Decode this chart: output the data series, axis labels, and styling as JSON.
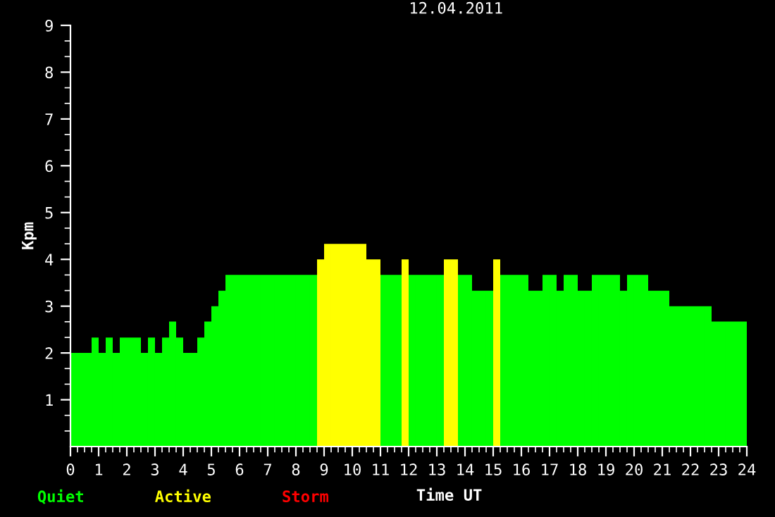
{
  "chart_data": {
    "type": "bar",
    "title": "12.04.2011",
    "xlabel": "Time UT",
    "ylabel": "Kpm",
    "x": [
      0.125,
      0.375,
      0.625,
      0.875,
      1.125,
      1.375,
      1.625,
      1.875,
      2.125,
      2.375,
      2.625,
      2.875,
      3.125,
      3.375,
      3.625,
      3.875,
      4.125,
      4.375,
      4.625,
      4.875,
      5.125,
      5.375,
      5.625,
      5.875,
      6.125,
      6.375,
      6.625,
      6.875,
      7.125,
      7.375,
      7.625,
      7.875,
      8.125,
      8.375,
      8.625,
      8.875,
      9.125,
      9.375,
      9.625,
      9.875,
      10.125,
      10.375,
      10.625,
      10.875,
      11.125,
      11.375,
      11.625,
      11.875,
      12.125,
      12.375,
      12.625,
      12.875,
      13.125,
      13.375,
      13.625,
      13.875,
      14.125,
      14.375,
      14.625,
      14.875,
      15.125,
      15.375,
      15.625,
      15.875,
      16.125,
      16.375,
      16.625,
      16.875,
      17.125,
      17.375,
      17.625,
      17.875,
      18.125,
      18.375,
      18.625,
      18.875,
      19.125,
      19.375,
      19.625,
      19.875,
      20.125,
      20.375,
      20.625,
      20.875,
      21.125,
      21.375,
      21.625,
      21.875,
      22.125,
      22.375,
      22.625,
      22.875,
      23.125,
      23.375,
      23.625,
      23.875
    ],
    "series": [
      {
        "name": "Quiet",
        "color": "#00ff00",
        "values": [
          2,
          2,
          2,
          2.33,
          2,
          2.33,
          2,
          2.33,
          2.33,
          2.33,
          2,
          2.33,
          2,
          2.33,
          2.67,
          2.33,
          2,
          2,
          2.33,
          2.67,
          3,
          3.33,
          3.67,
          3.67,
          3.67,
          3.67,
          3.67,
          3.67,
          3.67,
          3.67,
          3.67,
          3.67,
          3.67,
          3.67,
          3.67,
          null,
          null,
          null,
          null,
          null,
          null,
          null,
          null,
          null,
          3.67,
          3.67,
          3.67,
          null,
          3.67,
          3.67,
          3.67,
          3.67,
          3.67,
          null,
          null,
          3.67,
          3.67,
          3.33,
          3.33,
          3.33,
          null,
          3.67,
          3.67,
          3.67,
          3.67,
          3.33,
          3.33,
          3.67,
          3.67,
          3.33,
          3.67,
          3.67,
          3.33,
          3.33,
          3.67,
          3.67,
          3.67,
          3.67,
          3.33,
          3.67,
          3.67,
          3.67,
          3.33,
          3.33,
          3.33,
          3,
          3,
          3,
          3,
          3,
          3,
          2.67,
          2.67,
          2.67,
          2.67,
          2.67
        ]
      },
      {
        "name": "Active",
        "color": "#ffff00",
        "values": [
          null,
          null,
          null,
          null,
          null,
          null,
          null,
          null,
          null,
          null,
          null,
          null,
          null,
          null,
          null,
          null,
          null,
          null,
          null,
          null,
          null,
          null,
          null,
          null,
          null,
          null,
          null,
          null,
          null,
          null,
          null,
          null,
          null,
          null,
          null,
          4,
          4.33,
          4.33,
          4.33,
          4.33,
          4.33,
          4.33,
          4,
          4,
          null,
          null,
          null,
          4,
          null,
          null,
          null,
          null,
          null,
          4,
          4,
          null,
          null,
          null,
          null,
          null,
          4,
          null,
          null,
          null,
          null,
          null,
          null,
          null,
          null,
          null,
          null,
          null,
          null,
          null,
          null,
          null,
          null,
          null,
          null,
          null,
          null,
          null,
          null,
          null,
          null,
          null,
          null,
          null,
          null,
          null,
          null,
          null,
          null,
          null,
          null,
          null
        ]
      },
      {
        "name": "Storm",
        "color": "#ff0000",
        "values": [
          null,
          null,
          null,
          null,
          null,
          null,
          null,
          null,
          null,
          null,
          null,
          null,
          null,
          null,
          null,
          null,
          null,
          null,
          null,
          null,
          null,
          null,
          null,
          null,
          null,
          null,
          null,
          null,
          null,
          null,
          null,
          null,
          null,
          null,
          null,
          null,
          null,
          null,
          null,
          null,
          null,
          null,
          null,
          null,
          null,
          null,
          null,
          null,
          null,
          null,
          null,
          null,
          null,
          null,
          null,
          null,
          null,
          null,
          null,
          null,
          null,
          null,
          null,
          null,
          null,
          null,
          null,
          null,
          null,
          null,
          null,
          null,
          null,
          null,
          null,
          null,
          null,
          null,
          null,
          null,
          null,
          null,
          null,
          null,
          null,
          null,
          null,
          null,
          null,
          null,
          null,
          null,
          null,
          null,
          null,
          null
        ]
      }
    ],
    "xlim": [
      0,
      24
    ],
    "ylim": [
      0,
      9
    ],
    "xticks": [
      0,
      {
        "value": 0.25,
        "label": null
      },
      {
        "value": 0.5,
        "label": null
      },
      {
        "value": 0.75,
        "label": null
      },
      1,
      {
        "value": 1.25,
        "label": null
      },
      {
        "value": 1.5,
        "label": null
      },
      {
        "value": 1.75,
        "label": null
      },
      2,
      {
        "value": 2.25,
        "label": null
      },
      {
        "value": 2.5,
        "label": null
      },
      {
        "value": 2.75,
        "label": null
      },
      3,
      {
        "value": 3.25,
        "label": null
      },
      {
        "value": 3.5,
        "label": null
      },
      {
        "value": 3.75,
        "label": null
      },
      4,
      {
        "value": 4.25,
        "label": null
      },
      {
        "value": 4.5,
        "label": null
      },
      {
        "value": 4.75,
        "label": null
      },
      5,
      {
        "value": 5.25,
        "label": null
      },
      {
        "value": 5.5,
        "label": null
      },
      {
        "value": 5.75,
        "label": null
      },
      6,
      {
        "value": 6.25,
        "label": null
      },
      {
        "value": 6.5,
        "label": null
      },
      {
        "value": 6.75,
        "label": null
      },
      7,
      {
        "value": 7.25,
        "label": null
      },
      {
        "value": 7.5,
        "label": null
      },
      {
        "value": 7.75,
        "label": null
      },
      8,
      {
        "value": 8.25,
        "label": null
      },
      {
        "value": 8.5,
        "label": null
      },
      {
        "value": 8.75,
        "label": null
      },
      9,
      {
        "value": 9.25,
        "label": null
      },
      {
        "value": 9.5,
        "label": null
      },
      {
        "value": 9.75,
        "label": null
      },
      10,
      {
        "value": 10.25,
        "label": null
      },
      {
        "value": 10.5,
        "label": null
      },
      {
        "value": 10.75,
        "label": null
      },
      11,
      {
        "value": 11.25,
        "label": null
      },
      {
        "value": 11.5,
        "label": null
      },
      {
        "value": 11.75,
        "label": null
      },
      12,
      {
        "value": 12.25,
        "label": null
      },
      {
        "value": 12.5,
        "label": null
      },
      {
        "value": 12.75,
        "label": null
      },
      13,
      {
        "value": 13.25,
        "label": null
      },
      {
        "value": 13.5,
        "label": null
      },
      {
        "value": 13.75,
        "label": null
      },
      14,
      {
        "value": 14.25,
        "label": null
      },
      {
        "value": 14.5,
        "label": null
      },
      {
        "value": 14.75,
        "label": null
      },
      15,
      {
        "value": 15.25,
        "label": null
      },
      {
        "value": 15.5,
        "label": null
      },
      {
        "value": 15.75,
        "label": null
      },
      16,
      {
        "value": 16.25,
        "label": null
      },
      {
        "value": 16.5,
        "label": null
      },
      {
        "value": 16.75,
        "label": null
      },
      17,
      {
        "value": 17.25,
        "label": null
      },
      {
        "value": 17.5,
        "label": null
      },
      {
        "value": 17.75,
        "label": null
      },
      18,
      {
        "value": 18.25,
        "label": null
      },
      {
        "value": 18.5,
        "label": null
      },
      {
        "value": 18.75,
        "label": null
      },
      19,
      {
        "value": 19.25,
        "label": null
      },
      {
        "value": 19.5,
        "label": null
      },
      {
        "value": 19.75,
        "label": null
      },
      20,
      {
        "value": 20.25,
        "label": null
      },
      {
        "value": 20.5,
        "label": null
      },
      {
        "value": 20.75,
        "label": null
      },
      21,
      {
        "value": 21.25,
        "label": null
      },
      {
        "value": 21.5,
        "label": null
      },
      {
        "value": 21.75,
        "label": null
      },
      22,
      {
        "value": 22.25,
        "label": null
      },
      {
        "value": 22.5,
        "label": null
      },
      {
        "value": 22.75,
        "label": null
      },
      23,
      {
        "value": 23.25,
        "label": null
      },
      {
        "value": 23.5,
        "label": null
      },
      {
        "value": 23.75,
        "label": null
      },
      24
    ],
    "yticks": [
      {
        "value": 0.333,
        "label": null
      },
      {
        "value": 0.667,
        "label": null
      },
      1,
      {
        "value": 1.333,
        "label": null
      },
      {
        "value": 1.667,
        "label": null
      },
      2,
      {
        "value": 2.333,
        "label": null
      },
      {
        "value": 2.667,
        "label": null
      },
      3,
      {
        "value": 3.333,
        "label": null
      },
      {
        "value": 3.667,
        "label": null
      },
      4,
      {
        "value": 4.333,
        "label": null
      },
      {
        "value": 4.667,
        "label": null
      },
      5,
      {
        "value": 5.333,
        "label": null
      },
      {
        "value": 5.667,
        "label": null
      },
      6,
      {
        "value": 6.333,
        "label": null
      },
      {
        "value": 6.667,
        "label": null
      },
      7,
      {
        "value": 7.333,
        "label": null
      },
      {
        "value": 7.667,
        "label": null
      },
      8,
      {
        "value": 8.333,
        "label": null
      },
      {
        "value": 8.667,
        "label": null
      },
      9
    ],
    "grid": false,
    "legend": "bottom left"
  }
}
